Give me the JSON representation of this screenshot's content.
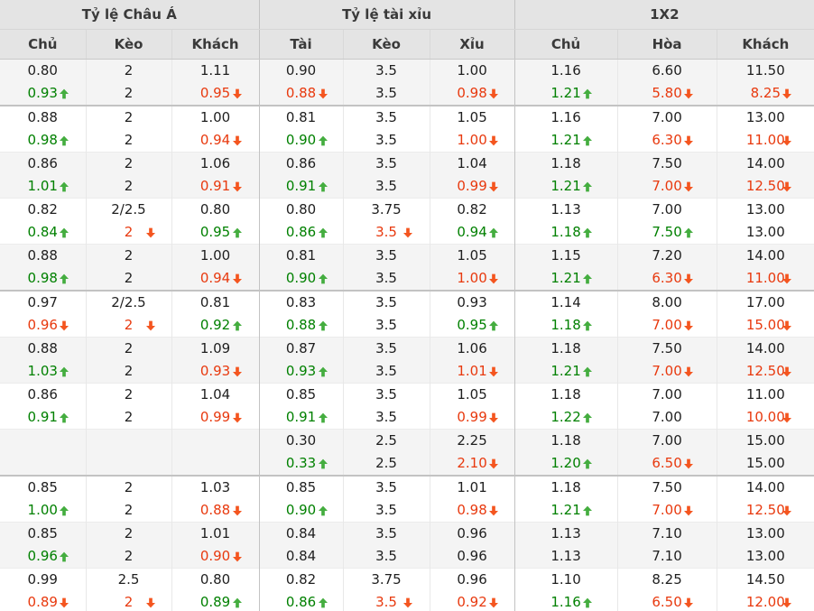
{
  "header": {
    "groups": [
      {
        "label": "Tỷ lệ Châu Á",
        "columns": [
          "Chủ",
          "Kèo",
          "Khách"
        ]
      },
      {
        "label": "Tỷ lệ tài xỉu",
        "columns": [
          "Tài",
          "Kèo",
          "Xỉu"
        ]
      },
      {
        "label": "1X2",
        "columns": [
          "Chủ",
          "Hòa",
          "Khách"
        ]
      }
    ]
  },
  "icons": {
    "trend_up": "arrow-up",
    "trend_down": "arrow-down"
  },
  "colors": {
    "up_text": "#008000",
    "up_arrow": "#44ad3f",
    "down_text": "#e8390e",
    "down_arrow": "#f4551f",
    "header_bg": "#e4e4e4",
    "alt_row_bg": "#f4f4f4"
  },
  "table": {
    "rows": [
      {
        "group_end": true,
        "cells": [
          {
            "top": "0.80",
            "bottom": "0.93",
            "trend": "up"
          },
          {
            "top": "2",
            "bottom": "2",
            "trend": null
          },
          {
            "top": "1.11",
            "bottom": "0.95",
            "trend": "down"
          },
          {
            "top": "0.90",
            "bottom": "0.88",
            "trend": "down"
          },
          {
            "top": "3.5",
            "bottom": "3.5",
            "trend": null
          },
          {
            "top": "1.00",
            "bottom": "0.98",
            "trend": "down"
          },
          {
            "top": "1.16",
            "bottom": "1.21",
            "trend": "up"
          },
          {
            "top": "6.60",
            "bottom": "5.80",
            "trend": "down"
          },
          {
            "top": "11.50",
            "bottom": "8.25",
            "trend": "down"
          }
        ]
      },
      {
        "group_end": false,
        "cells": [
          {
            "top": "0.88",
            "bottom": "0.98",
            "trend": "up"
          },
          {
            "top": "2",
            "bottom": "2",
            "trend": null
          },
          {
            "top": "1.00",
            "bottom": "0.94",
            "trend": "down"
          },
          {
            "top": "0.81",
            "bottom": "0.90",
            "trend": "up"
          },
          {
            "top": "3.5",
            "bottom": "3.5",
            "trend": null
          },
          {
            "top": "1.05",
            "bottom": "1.00",
            "trend": "down"
          },
          {
            "top": "1.16",
            "bottom": "1.21",
            "trend": "up"
          },
          {
            "top": "7.00",
            "bottom": "6.30",
            "trend": "down"
          },
          {
            "top": "13.00",
            "bottom": "11.00",
            "trend": "down"
          }
        ]
      },
      {
        "group_end": false,
        "cells": [
          {
            "top": "0.86",
            "bottom": "1.01",
            "trend": "up"
          },
          {
            "top": "2",
            "bottom": "2",
            "trend": null
          },
          {
            "top": "1.06",
            "bottom": "0.91",
            "trend": "down"
          },
          {
            "top": "0.86",
            "bottom": "0.91",
            "trend": "up"
          },
          {
            "top": "3.5",
            "bottom": "3.5",
            "trend": null
          },
          {
            "top": "1.04",
            "bottom": "0.99",
            "trend": "down"
          },
          {
            "top": "1.18",
            "bottom": "1.21",
            "trend": "up"
          },
          {
            "top": "7.50",
            "bottom": "7.00",
            "trend": "down"
          },
          {
            "top": "14.00",
            "bottom": "12.50",
            "trend": "down"
          }
        ]
      },
      {
        "group_end": false,
        "cells": [
          {
            "top": "0.82",
            "bottom": "0.84",
            "trend": "up"
          },
          {
            "top": "2/2.5",
            "bottom": "2",
            "trend": "down"
          },
          {
            "top": "0.80",
            "bottom": "0.95",
            "trend": "up"
          },
          {
            "top": "0.80",
            "bottom": "0.86",
            "trend": "up"
          },
          {
            "top": "3.75",
            "bottom": "3.5",
            "trend": "down"
          },
          {
            "top": "0.82",
            "bottom": "0.94",
            "trend": "up"
          },
          {
            "top": "1.13",
            "bottom": "1.18",
            "trend": "up"
          },
          {
            "top": "7.00",
            "bottom": "7.50",
            "trend": "up"
          },
          {
            "top": "13.00",
            "bottom": "13.00",
            "trend": null
          }
        ]
      },
      {
        "group_end": true,
        "cells": [
          {
            "top": "0.88",
            "bottom": "0.98",
            "trend": "up"
          },
          {
            "top": "2",
            "bottom": "2",
            "trend": null
          },
          {
            "top": "1.00",
            "bottom": "0.94",
            "trend": "down"
          },
          {
            "top": "0.81",
            "bottom": "0.90",
            "trend": "up"
          },
          {
            "top": "3.5",
            "bottom": "3.5",
            "trend": null
          },
          {
            "top": "1.05",
            "bottom": "1.00",
            "trend": "down"
          },
          {
            "top": "1.15",
            "bottom": "1.21",
            "trend": "up"
          },
          {
            "top": "7.20",
            "bottom": "6.30",
            "trend": "down"
          },
          {
            "top": "14.00",
            "bottom": "11.00",
            "trend": "down"
          }
        ]
      },
      {
        "group_end": false,
        "cells": [
          {
            "top": "0.97",
            "bottom": "0.96",
            "trend": "down"
          },
          {
            "top": "2/2.5",
            "bottom": "2",
            "trend": "down"
          },
          {
            "top": "0.81",
            "bottom": "0.92",
            "trend": "up"
          },
          {
            "top": "0.83",
            "bottom": "0.88",
            "trend": "up"
          },
          {
            "top": "3.5",
            "bottom": "3.5",
            "trend": null
          },
          {
            "top": "0.93",
            "bottom": "0.95",
            "trend": "up"
          },
          {
            "top": "1.14",
            "bottom": "1.18",
            "trend": "up"
          },
          {
            "top": "8.00",
            "bottom": "7.00",
            "trend": "down"
          },
          {
            "top": "17.00",
            "bottom": "15.00",
            "trend": "down"
          }
        ]
      },
      {
        "group_end": false,
        "cells": [
          {
            "top": "0.88",
            "bottom": "1.03",
            "trend": "up"
          },
          {
            "top": "2",
            "bottom": "2",
            "trend": null
          },
          {
            "top": "1.09",
            "bottom": "0.93",
            "trend": "down"
          },
          {
            "top": "0.87",
            "bottom": "0.93",
            "trend": "up"
          },
          {
            "top": "3.5",
            "bottom": "3.5",
            "trend": null
          },
          {
            "top": "1.06",
            "bottom": "1.01",
            "trend": "down"
          },
          {
            "top": "1.18",
            "bottom": "1.21",
            "trend": "up"
          },
          {
            "top": "7.50",
            "bottom": "7.00",
            "trend": "down"
          },
          {
            "top": "14.00",
            "bottom": "12.50",
            "trend": "down"
          }
        ]
      },
      {
        "group_end": false,
        "cells": [
          {
            "top": "0.86",
            "bottom": "0.91",
            "trend": "up"
          },
          {
            "top": "2",
            "bottom": "2",
            "trend": null
          },
          {
            "top": "1.04",
            "bottom": "0.99",
            "trend": "down"
          },
          {
            "top": "0.85",
            "bottom": "0.91",
            "trend": "up"
          },
          {
            "top": "3.5",
            "bottom": "3.5",
            "trend": null
          },
          {
            "top": "1.05",
            "bottom": "0.99",
            "trend": "down"
          },
          {
            "top": "1.18",
            "bottom": "1.22",
            "trend": "up"
          },
          {
            "top": "7.00",
            "bottom": "7.00",
            "trend": null
          },
          {
            "top": "11.00",
            "bottom": "10.00",
            "trend": "down"
          }
        ]
      },
      {
        "group_end": true,
        "cells": [
          {
            "top": "",
            "bottom": "",
            "trend": null
          },
          {
            "top": "",
            "bottom": "",
            "trend": null
          },
          {
            "top": "",
            "bottom": "",
            "trend": null
          },
          {
            "top": "0.30",
            "bottom": "0.33",
            "trend": "up"
          },
          {
            "top": "2.5",
            "bottom": "2.5",
            "trend": null
          },
          {
            "top": "2.25",
            "bottom": "2.10",
            "trend": "down"
          },
          {
            "top": "1.18",
            "bottom": "1.20",
            "trend": "up"
          },
          {
            "top": "7.00",
            "bottom": "6.50",
            "trend": "down"
          },
          {
            "top": "15.00",
            "bottom": "15.00",
            "trend": null
          }
        ]
      },
      {
        "group_end": false,
        "cells": [
          {
            "top": "0.85",
            "bottom": "1.00",
            "trend": "up"
          },
          {
            "top": "2",
            "bottom": "2",
            "trend": null
          },
          {
            "top": "1.03",
            "bottom": "0.88",
            "trend": "down"
          },
          {
            "top": "0.85",
            "bottom": "0.90",
            "trend": "up"
          },
          {
            "top": "3.5",
            "bottom": "3.5",
            "trend": null
          },
          {
            "top": "1.01",
            "bottom": "0.98",
            "trend": "down"
          },
          {
            "top": "1.18",
            "bottom": "1.21",
            "trend": "up"
          },
          {
            "top": "7.50",
            "bottom": "7.00",
            "trend": "down"
          },
          {
            "top": "14.00",
            "bottom": "12.50",
            "trend": "down"
          }
        ]
      },
      {
        "group_end": false,
        "cells": [
          {
            "top": "0.85",
            "bottom": "0.96",
            "trend": "up"
          },
          {
            "top": "2",
            "bottom": "2",
            "trend": null
          },
          {
            "top": "1.01",
            "bottom": "0.90",
            "trend": "down"
          },
          {
            "top": "0.84",
            "bottom": "0.84",
            "trend": null
          },
          {
            "top": "3.5",
            "bottom": "3.5",
            "trend": null
          },
          {
            "top": "0.96",
            "bottom": "0.96",
            "trend": null
          },
          {
            "top": "1.13",
            "bottom": "1.13",
            "trend": null
          },
          {
            "top": "7.10",
            "bottom": "7.10",
            "trend": null
          },
          {
            "top": "13.00",
            "bottom": "13.00",
            "trend": null
          }
        ]
      },
      {
        "group_end": false,
        "cells": [
          {
            "top": "0.99",
            "bottom": "0.89",
            "trend": "down"
          },
          {
            "top": "2.5",
            "bottom": "2",
            "trend": "down"
          },
          {
            "top": "0.80",
            "bottom": "0.89",
            "trend": "up"
          },
          {
            "top": "0.82",
            "bottom": "0.86",
            "trend": "up"
          },
          {
            "top": "3.75",
            "bottom": "3.5",
            "trend": "down"
          },
          {
            "top": "0.96",
            "bottom": "0.92",
            "trend": "down"
          },
          {
            "top": "1.10",
            "bottom": "1.16",
            "trend": "up"
          },
          {
            "top": "8.25",
            "bottom": "6.50",
            "trend": "down"
          },
          {
            "top": "14.50",
            "bottom": "12.00",
            "trend": "down"
          }
        ]
      }
    ]
  }
}
